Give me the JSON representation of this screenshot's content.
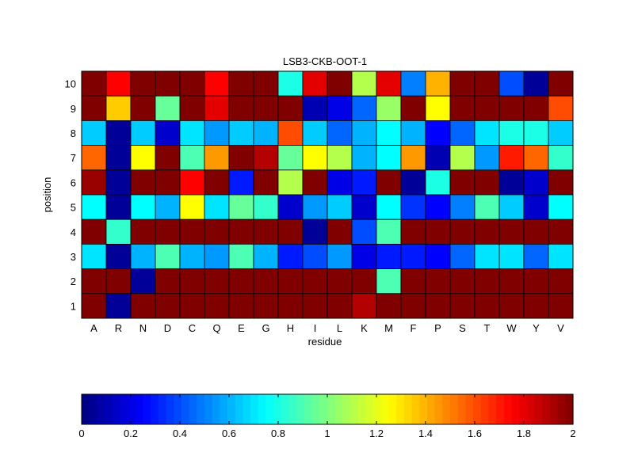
{
  "chart_data": {
    "type": "heatmap",
    "title": "LSB3-CKB-OOT-1",
    "xlabel": "residue",
    "ylabel": "position",
    "x_categories": [
      "A",
      "R",
      "N",
      "D",
      "C",
      "Q",
      "E",
      "G",
      "H",
      "I",
      "L",
      "K",
      "M",
      "F",
      "P",
      "S",
      "T",
      "W",
      "Y",
      "V"
    ],
    "y_categories": [
      "1",
      "2",
      "3",
      "4",
      "5",
      "6",
      "7",
      "8",
      "9",
      "10"
    ],
    "rows": [
      {
        "position": "10",
        "values": [
          2.0,
          1.75,
          2.0,
          2.0,
          2.0,
          1.75,
          2.0,
          2.0,
          0.8,
          1.8,
          2.0,
          1.1,
          1.8,
          0.5,
          1.4,
          2.0,
          2.0,
          0.4,
          0.05,
          2.0
        ]
      },
      {
        "position": "9",
        "values": [
          2.0,
          1.35,
          2.0,
          0.95,
          2.0,
          1.8,
          2.0,
          2.0,
          2.0,
          0.1,
          0.2,
          0.45,
          1.05,
          2.0,
          1.25,
          2.0,
          2.0,
          2.0,
          2.0,
          1.6
        ]
      },
      {
        "position": "8",
        "values": [
          0.65,
          0.05,
          0.65,
          0.15,
          0.7,
          0.55,
          0.65,
          0.6,
          1.6,
          0.65,
          0.45,
          0.6,
          0.75,
          0.6,
          0.25,
          0.45,
          0.7,
          0.8,
          0.8,
          0.65
        ]
      },
      {
        "position": "7",
        "values": [
          1.55,
          0.05,
          1.25,
          2.0,
          0.9,
          1.45,
          2.0,
          1.9,
          0.95,
          1.25,
          1.1,
          0.6,
          0.75,
          1.45,
          0.1,
          1.1,
          0.55,
          1.7,
          1.55,
          0.85
        ]
      },
      {
        "position": "6",
        "values": [
          1.95,
          0.05,
          2.0,
          2.0,
          1.75,
          2.0,
          0.3,
          2.0,
          1.1,
          2.0,
          0.2,
          0.3,
          2.0,
          0.05,
          0.8,
          2.0,
          2.0,
          0.05,
          0.15,
          2.0
        ]
      },
      {
        "position": "5",
        "values": [
          0.75,
          0.05,
          0.75,
          0.6,
          1.25,
          0.7,
          0.95,
          0.85,
          0.15,
          0.55,
          0.65,
          0.15,
          0.75,
          0.35,
          0.25,
          0.5,
          0.9,
          0.65,
          0.15,
          0.75
        ]
      },
      {
        "position": "4",
        "values": [
          2.0,
          0.85,
          2.0,
          2.0,
          2.0,
          2.0,
          2.0,
          2.0,
          2.0,
          0.05,
          2.0,
          0.4,
          0.9,
          2.0,
          2.0,
          2.0,
          2.0,
          2.0,
          2.0,
          2.0
        ]
      },
      {
        "position": "3",
        "values": [
          0.7,
          0.05,
          0.6,
          0.9,
          0.6,
          0.55,
          0.9,
          0.6,
          0.3,
          0.4,
          0.55,
          0.2,
          0.3,
          0.3,
          0.25,
          0.45,
          0.7,
          0.7,
          0.45,
          0.7
        ]
      },
      {
        "position": "2",
        "values": [
          2.0,
          2.0,
          0.05,
          2.0,
          2.0,
          2.0,
          2.0,
          2.0,
          2.0,
          2.0,
          2.0,
          2.0,
          0.9,
          2.0,
          2.0,
          2.0,
          2.0,
          2.0,
          2.0,
          2.0
        ]
      },
      {
        "position": "1",
        "values": [
          2.0,
          0.05,
          2.0,
          2.0,
          2.0,
          2.0,
          2.0,
          2.0,
          2.0,
          2.0,
          2.0,
          1.9,
          2.0,
          2.0,
          2.0,
          2.0,
          2.0,
          2.0,
          2.0,
          2.0
        ]
      }
    ],
    "colorbar": {
      "range": [
        0,
        2
      ],
      "ticks": [
        "0",
        "0.2",
        "0.4",
        "0.6",
        "0.8",
        "1",
        "1.2",
        "1.4",
        "1.6",
        "1.8",
        "2"
      ],
      "colormap": "jet",
      "placement": "bottom"
    },
    "grid": false
  }
}
